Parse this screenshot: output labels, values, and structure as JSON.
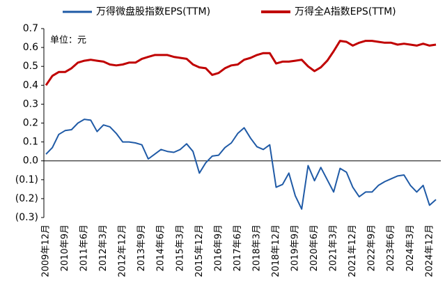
{
  "chart_data": {
    "type": "line",
    "annotations": [
      "单位：元"
    ],
    "categories": [
      "2009年12月",
      null,
      null,
      "2010年9月",
      null,
      null,
      "2011年6月",
      null,
      null,
      "2012年3月",
      null,
      null,
      "2012年12月",
      null,
      null,
      "2013年9月",
      null,
      null,
      "2014年6月",
      null,
      null,
      "2015年3月",
      null,
      null,
      "2015年12月",
      null,
      null,
      "2016年9月",
      null,
      null,
      "2017年6月",
      null,
      null,
      "2018年3月",
      null,
      null,
      "2018年12月",
      null,
      null,
      "2019年9月",
      null,
      null,
      "2020年6月",
      null,
      null,
      "2021年3月",
      null,
      null,
      "2021年12月",
      null,
      null,
      "2022年9月",
      null,
      null,
      "2023年6月",
      null,
      null,
      "2024年3月",
      null,
      null,
      "2024年12月",
      null
    ],
    "series": [
      {
        "name": "万得微盘股指数EPS(TTM)",
        "color": "#1f5aa6",
        "values": [
          0.035,
          0.07,
          0.14,
          0.16,
          0.165,
          0.2,
          0.22,
          0.215,
          0.155,
          0.19,
          0.18,
          0.145,
          0.1,
          0.1,
          0.095,
          0.085,
          0.01,
          0.035,
          0.06,
          0.05,
          0.045,
          0.06,
          0.09,
          0.05,
          -0.065,
          -0.01,
          0.025,
          0.03,
          0.07,
          0.095,
          0.145,
          0.175,
          0.12,
          0.075,
          0.06,
          0.085,
          -0.14,
          -0.125,
          -0.065,
          -0.185,
          -0.255,
          -0.025,
          -0.105,
          -0.035,
          -0.1,
          -0.165,
          -0.04,
          -0.06,
          -0.14,
          -0.19,
          -0.165,
          -0.165,
          -0.13,
          -0.11,
          -0.095,
          -0.08,
          -0.075,
          -0.13,
          -0.165,
          -0.13,
          -0.235,
          -0.205
        ]
      },
      {
        "name": "万得全A指数EPS(TTM)",
        "color": "#c00000",
        "values": [
          0.4,
          0.45,
          0.47,
          0.47,
          0.49,
          0.52,
          0.53,
          0.535,
          0.53,
          0.525,
          0.51,
          0.505,
          0.51,
          0.52,
          0.52,
          0.54,
          0.55,
          0.56,
          0.56,
          0.56,
          0.55,
          0.545,
          0.54,
          0.51,
          0.495,
          0.49,
          0.455,
          0.465,
          0.49,
          0.505,
          0.51,
          0.535,
          0.545,
          0.56,
          0.57,
          0.57,
          0.515,
          0.525,
          0.525,
          0.53,
          0.535,
          0.5,
          0.475,
          0.495,
          0.53,
          0.58,
          0.635,
          0.63,
          0.61,
          0.625,
          0.635,
          0.635,
          0.63,
          0.625,
          0.625,
          0.615,
          0.62,
          0.615,
          0.61,
          0.62,
          0.61,
          0.615
        ]
      }
    ],
    "ylim": [
      -0.3,
      0.7
    ],
    "yticks": [
      {
        "value": -0.3,
        "label": "(0.3)"
      },
      {
        "value": -0.2,
        "label": "(0.2)"
      },
      {
        "value": -0.1,
        "label": "(0.1)"
      },
      {
        "value": 0,
        "label": "0.0"
      },
      0.1,
      0.2,
      0.3,
      0.4,
      0.5,
      0.6,
      0.7
    ]
  }
}
